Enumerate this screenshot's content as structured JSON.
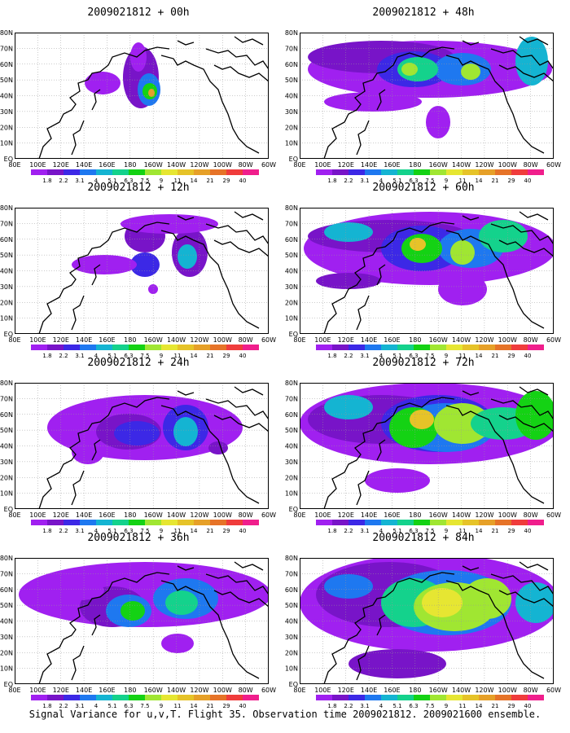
{
  "panels": [
    {
      "title": "2009021812 + 00h",
      "blobs": [
        [
          155,
          55,
          22,
          38,
          1
        ],
        [
          165,
          70,
          14,
          20,
          3
        ],
        [
          166,
          72,
          9,
          10,
          6
        ],
        [
          168,
          74,
          4,
          5,
          10
        ],
        [
          108,
          62,
          22,
          14,
          0
        ],
        [
          152,
          30,
          10,
          18,
          0
        ]
      ]
    },
    {
      "title": "2009021812 + 48h",
      "blobs": [
        [
          160,
          45,
          150,
          35,
          0
        ],
        [
          100,
          30,
          90,
          20,
          1
        ],
        [
          140,
          45,
          45,
          22,
          2
        ],
        [
          200,
          45,
          35,
          20,
          3
        ],
        [
          145,
          45,
          25,
          15,
          5
        ],
        [
          135,
          45,
          10,
          8,
          7
        ],
        [
          210,
          48,
          12,
          10,
          7
        ],
        [
          90,
          85,
          60,
          12,
          0
        ],
        [
          170,
          110,
          15,
          20,
          0
        ],
        [
          285,
          35,
          20,
          30,
          4
        ]
      ]
    },
    {
      "title": "2009021812 + 12h",
      "blobs": [
        [
          160,
          35,
          25,
          20,
          1
        ],
        [
          160,
          70,
          18,
          15,
          2
        ],
        [
          215,
          55,
          22,
          30,
          1
        ],
        [
          212,
          60,
          12,
          15,
          4
        ],
        [
          110,
          70,
          40,
          12,
          0
        ],
        [
          190,
          20,
          60,
          12,
          0
        ],
        [
          170,
          100,
          6,
          6,
          0
        ]
      ]
    },
    {
      "title": "2009021812 + 60h",
      "blobs": [
        [
          160,
          50,
          155,
          45,
          0
        ],
        [
          110,
          35,
          100,
          20,
          1
        ],
        [
          150,
          50,
          50,
          28,
          2
        ],
        [
          210,
          50,
          40,
          24,
          3
        ],
        [
          150,
          50,
          25,
          18,
          6
        ],
        [
          200,
          55,
          15,
          15,
          7
        ],
        [
          145,
          45,
          10,
          8,
          9
        ],
        [
          60,
          30,
          30,
          12,
          4
        ],
        [
          250,
          35,
          30,
          20,
          5
        ],
        [
          200,
          100,
          30,
          20,
          0
        ],
        [
          60,
          90,
          40,
          10,
          1
        ]
      ]
    },
    {
      "title": "2009021812 + 24h",
      "blobs": [
        [
          160,
          55,
          120,
          40,
          0
        ],
        [
          140,
          60,
          40,
          22,
          1
        ],
        [
          150,
          62,
          28,
          15,
          2
        ],
        [
          210,
          55,
          28,
          28,
          2
        ],
        [
          210,
          60,
          15,
          18,
          4
        ],
        [
          90,
          85,
          20,
          15,
          0
        ],
        [
          250,
          80,
          12,
          8,
          1
        ]
      ]
    },
    {
      "title": "2009021812 + 72h",
      "blobs": [
        [
          160,
          50,
          160,
          50,
          0
        ],
        [
          100,
          45,
          90,
          30,
          1
        ],
        [
          170,
          50,
          70,
          35,
          2
        ],
        [
          180,
          55,
          60,
          30,
          3
        ],
        [
          140,
          55,
          30,
          25,
          6
        ],
        [
          200,
          50,
          35,
          25,
          7
        ],
        [
          150,
          45,
          15,
          12,
          9
        ],
        [
          60,
          30,
          30,
          15,
          4
        ],
        [
          250,
          50,
          40,
          20,
          5
        ],
        [
          290,
          40,
          25,
          30,
          6
        ],
        [
          120,
          120,
          40,
          15,
          0
        ]
      ]
    },
    {
      "title": "2009021812 + 36h",
      "blobs": [
        [
          160,
          45,
          155,
          40,
          0
        ],
        [
          120,
          60,
          40,
          25,
          1
        ],
        [
          140,
          65,
          28,
          20,
          3
        ],
        [
          145,
          65,
          15,
          12,
          6
        ],
        [
          210,
          50,
          40,
          25,
          3
        ],
        [
          205,
          55,
          20,
          15,
          5
        ],
        [
          200,
          105,
          20,
          12,
          0
        ],
        [
          80,
          40,
          30,
          12,
          0
        ]
      ]
    },
    {
      "title": "2009021812 + 84h",
      "blobs": [
        [
          160,
          55,
          160,
          60,
          0
        ],
        [
          110,
          45,
          90,
          40,
          1
        ],
        [
          180,
          55,
          80,
          40,
          3
        ],
        [
          140,
          55,
          40,
          30,
          5
        ],
        [
          190,
          60,
          50,
          30,
          7
        ],
        [
          175,
          55,
          25,
          18,
          8
        ],
        [
          230,
          50,
          30,
          25,
          7
        ],
        [
          60,
          35,
          30,
          15,
          3
        ],
        [
          290,
          55,
          25,
          25,
          4
        ],
        [
          120,
          130,
          60,
          18,
          1
        ]
      ]
    }
  ],
  "lat_labels": [
    "80N",
    "70N",
    "60N",
    "50N",
    "40N",
    "30N",
    "20N",
    "10N",
    "EQ"
  ],
  "lon_labels": [
    "80E",
    "100E",
    "120E",
    "140E",
    "160E",
    "180",
    "160W",
    "140W",
    "120W",
    "100W",
    "80W",
    "60W"
  ],
  "colorbar": {
    "labels": [
      "1.8",
      "2.2",
      "3.1",
      "4",
      "5.1",
      "6.3",
      "7.5",
      "9",
      "11",
      "14",
      "21",
      "29",
      "40"
    ],
    "colors": [
      "#a020f0",
      "#7814c8",
      "#3c28e6",
      "#1e78f0",
      "#14b4d2",
      "#14d28c",
      "#14d214",
      "#a0e632",
      "#e6e632",
      "#e6c328",
      "#e6a028",
      "#e67328",
      "#f03c3c",
      "#f01e8c"
    ]
  },
  "caption": "Signal Variance for u,v,T. Flight 35. Observation time 2009021812. 2009021600 ensemble."
}
